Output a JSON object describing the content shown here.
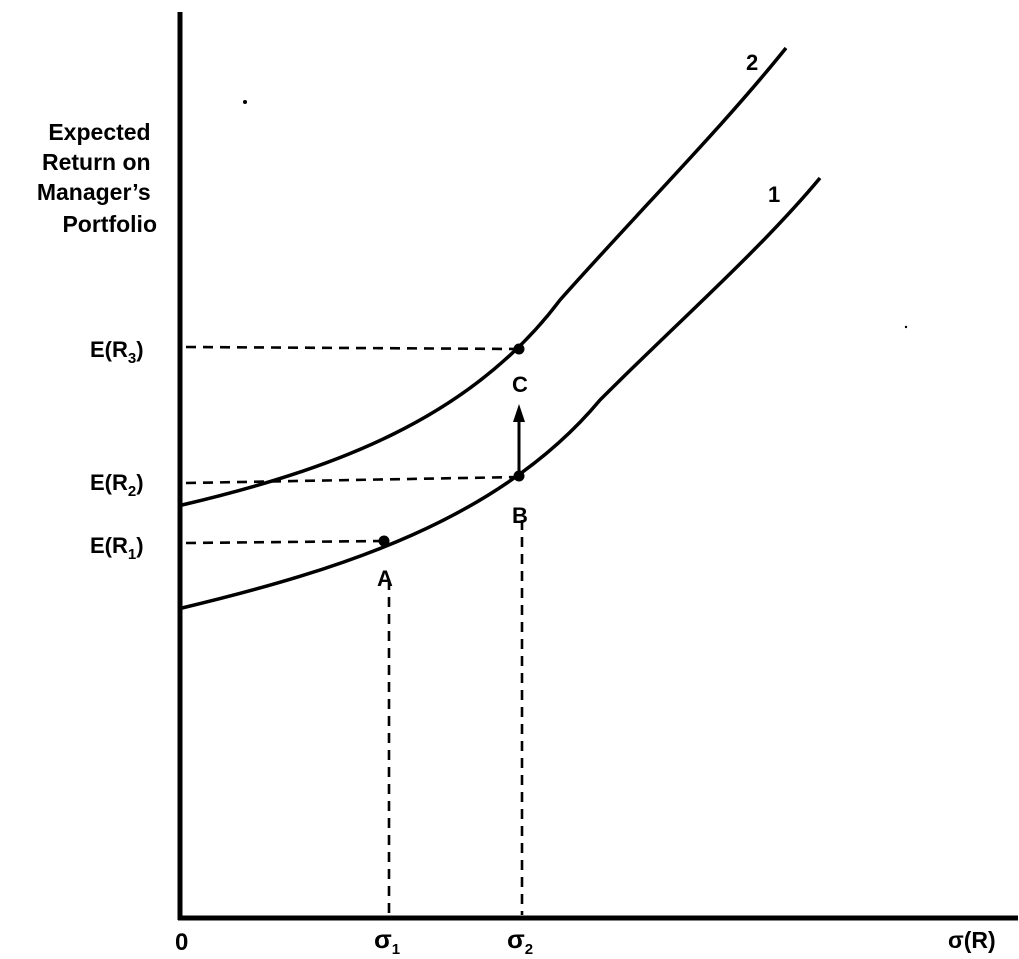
{
  "y_axis_title": [
    "Expected",
    "Return on",
    "Manager’s",
    "Portfolio"
  ],
  "x_axis_title": "σ(R)",
  "origin_label": "0",
  "y_tick_labels": [
    {
      "main": "E(R",
      "sub": "3",
      "close": ")"
    },
    {
      "main": "E(R",
      "sub": "2",
      "close": ")"
    },
    {
      "main": "E(R",
      "sub": "1",
      "close": ")"
    }
  ],
  "x_tick_labels": [
    {
      "main": "σ",
      "sub": "1"
    },
    {
      "main": "σ",
      "sub": "2"
    }
  ],
  "curve_labels": [
    "2",
    "1"
  ],
  "point_labels": [
    "A",
    "B",
    "C"
  ],
  "colors": {
    "ink": "#000000",
    "background": "#ffffff"
  }
}
